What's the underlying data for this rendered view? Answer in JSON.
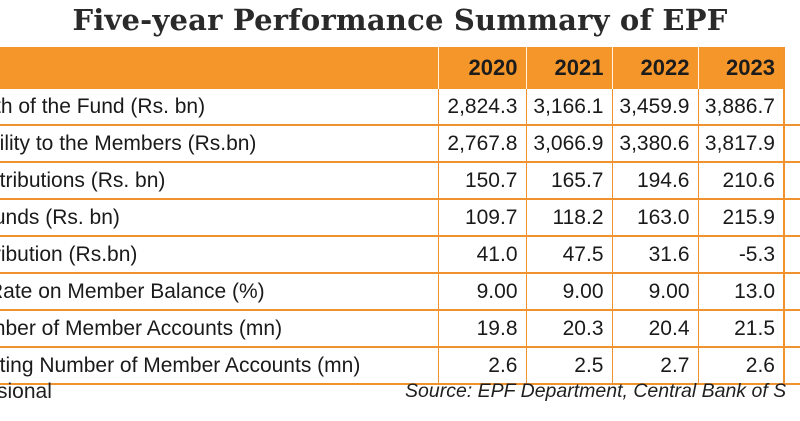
{
  "title": "Five-year Performance Summary of EPF",
  "table": {
    "years": [
      "2020",
      "2021",
      "2022",
      "2023"
    ],
    "rows": [
      {
        "label": "rth of the Fund (Rs. bn)",
        "values": [
          "2,824.3",
          "3,166.1",
          "3,459.9",
          "3,886.7"
        ]
      },
      {
        "label": "bility to the Members (Rs.bn)",
        "values": [
          "2,767.8",
          "3,066.9",
          "3,380.6",
          "3,817.9"
        ]
      },
      {
        "label": "ntributions (Rs. bn)",
        "values": [
          "150.7",
          "165.7",
          "194.6",
          "210.6"
        ]
      },
      {
        "label": "funds (Rs. bn)",
        "values": [
          "109.7",
          "118.2",
          "163.0",
          "215.9"
        ]
      },
      {
        "label": "tribution (Rs.bn)",
        "values": [
          "41.0",
          "47.5",
          "31.6",
          "-5.3"
        ]
      },
      {
        "label": "Rate on Member Balance (%)",
        "values": [
          "9.00",
          "9.00",
          "9.00",
          "13.0"
        ]
      },
      {
        "label": "mber of Member Accounts (mn)",
        "values": [
          "19.8",
          "20.3",
          "20.4",
          "21.5"
        ]
      },
      {
        "label": "uting Number of Member Accounts (mn)",
        "values": [
          "2.6",
          "2.5",
          "2.7",
          "2.6"
        ]
      }
    ]
  },
  "footer": {
    "note": "sional",
    "source": "Source: EPF Department, Central Bank of S"
  },
  "colors": {
    "accent": "#f4962a",
    "border": "#f0932e"
  }
}
